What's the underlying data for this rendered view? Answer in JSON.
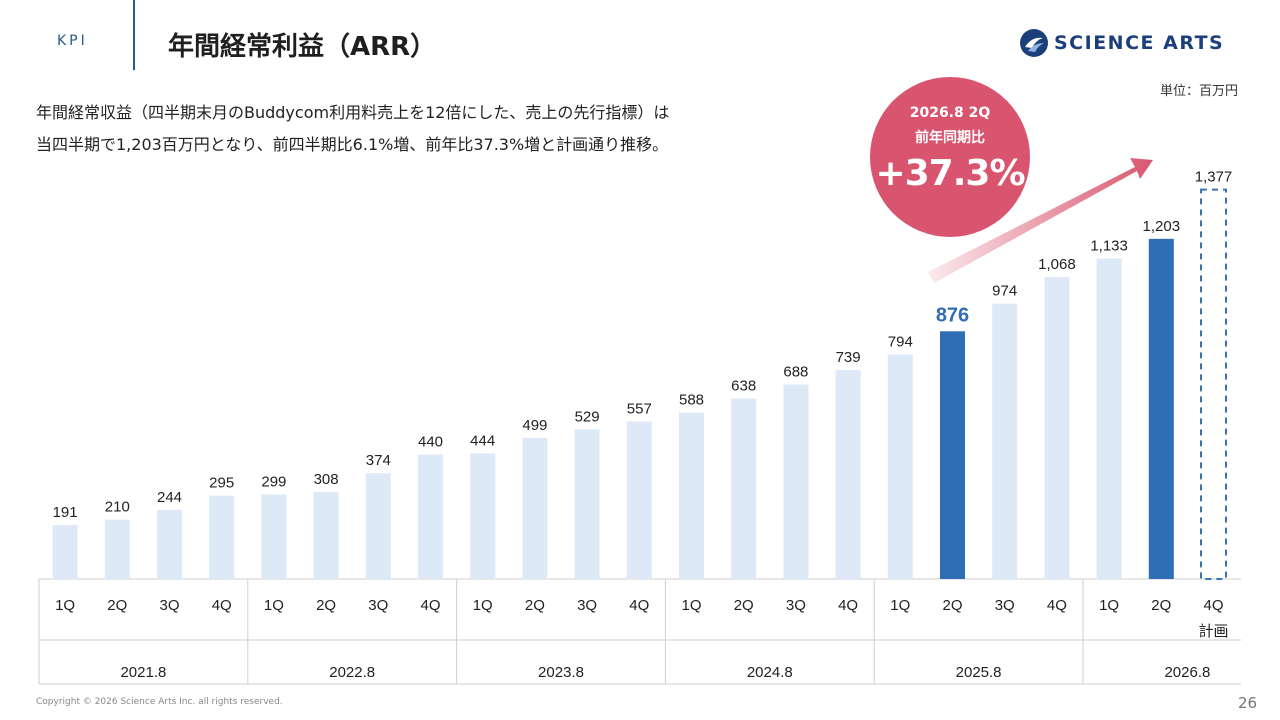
{
  "header": {
    "section_label": "KPI",
    "title": "年間経常利益（ARR）",
    "logo_text": "SCIENCE ARTS"
  },
  "unit_label": "単位：百万円",
  "description": {
    "line1": "年間経常収益（四半期末月のBuddycom利用料売上を12倍にした、売上の先行指標）は",
    "line2": "当四半期で1,203百万円となり、前四半期比6.1%増、前年比37.3%増と計画通り推移。"
  },
  "badge": {
    "line1": "2026.8 2Q",
    "line2": "前年同期比",
    "value": "+37.3%"
  },
  "colors": {
    "bar_light": "#dde9f6",
    "bar_highlight": "#2f6db5",
    "plan_dashed": "#3a73b5",
    "badge": "#d9556f",
    "arrow": "#d9556f",
    "grid_line": "#cfcfcf",
    "highlight_label": "#2f6db5"
  },
  "chart_data": {
    "type": "bar",
    "title": "年間経常利益（ARR）",
    "xlabel": "",
    "ylabel": "単位：百万円",
    "ylim": [
      0,
      1450
    ],
    "categories": [
      "1Q",
      "2Q",
      "3Q",
      "4Q",
      "1Q",
      "2Q",
      "3Q",
      "4Q",
      "1Q",
      "2Q",
      "3Q",
      "4Q",
      "1Q",
      "2Q",
      "3Q",
      "4Q",
      "1Q",
      "2Q",
      "3Q",
      "4Q",
      "1Q",
      "2Q",
      "4Q"
    ],
    "category_notes": [
      "",
      "",
      "",
      "",
      "",
      "",
      "",
      "",
      "",
      "",
      "",
      "",
      "",
      "",
      "",
      "",
      "",
      "",
      "",
      "",
      "",
      "",
      "計画"
    ],
    "values": [
      191,
      210,
      244,
      295,
      299,
      308,
      374,
      440,
      444,
      499,
      529,
      557,
      588,
      638,
      688,
      739,
      794,
      876,
      974,
      1068,
      1133,
      1203,
      1377
    ],
    "labels": [
      "191",
      "210",
      "244",
      "295",
      "299",
      "308",
      "374",
      "440",
      "444",
      "499",
      "529",
      "557",
      "588",
      "638",
      "688",
      "739",
      "794",
      "876",
      "974",
      "1,068",
      "1,133",
      "1,203",
      "1,377"
    ],
    "styles": [
      "normal",
      "normal",
      "normal",
      "normal",
      "normal",
      "normal",
      "normal",
      "normal",
      "normal",
      "normal",
      "normal",
      "normal",
      "normal",
      "normal",
      "normal",
      "normal",
      "normal",
      "highlight",
      "normal",
      "normal",
      "normal",
      "highlight",
      "plan"
    ],
    "groups": [
      {
        "label": "2021.8",
        "count": 4
      },
      {
        "label": "2022.8",
        "count": 4
      },
      {
        "label": "2023.8",
        "count": 4
      },
      {
        "label": "2024.8",
        "count": 4
      },
      {
        "label": "2025.8",
        "count": 4
      },
      {
        "label": "2026.8",
        "count": 3
      }
    ],
    "annotation": "+37.3%"
  },
  "footer": {
    "copyright": "Copyright © 2026 Science Arts Inc. all rights reserved.",
    "page_number": "26"
  }
}
